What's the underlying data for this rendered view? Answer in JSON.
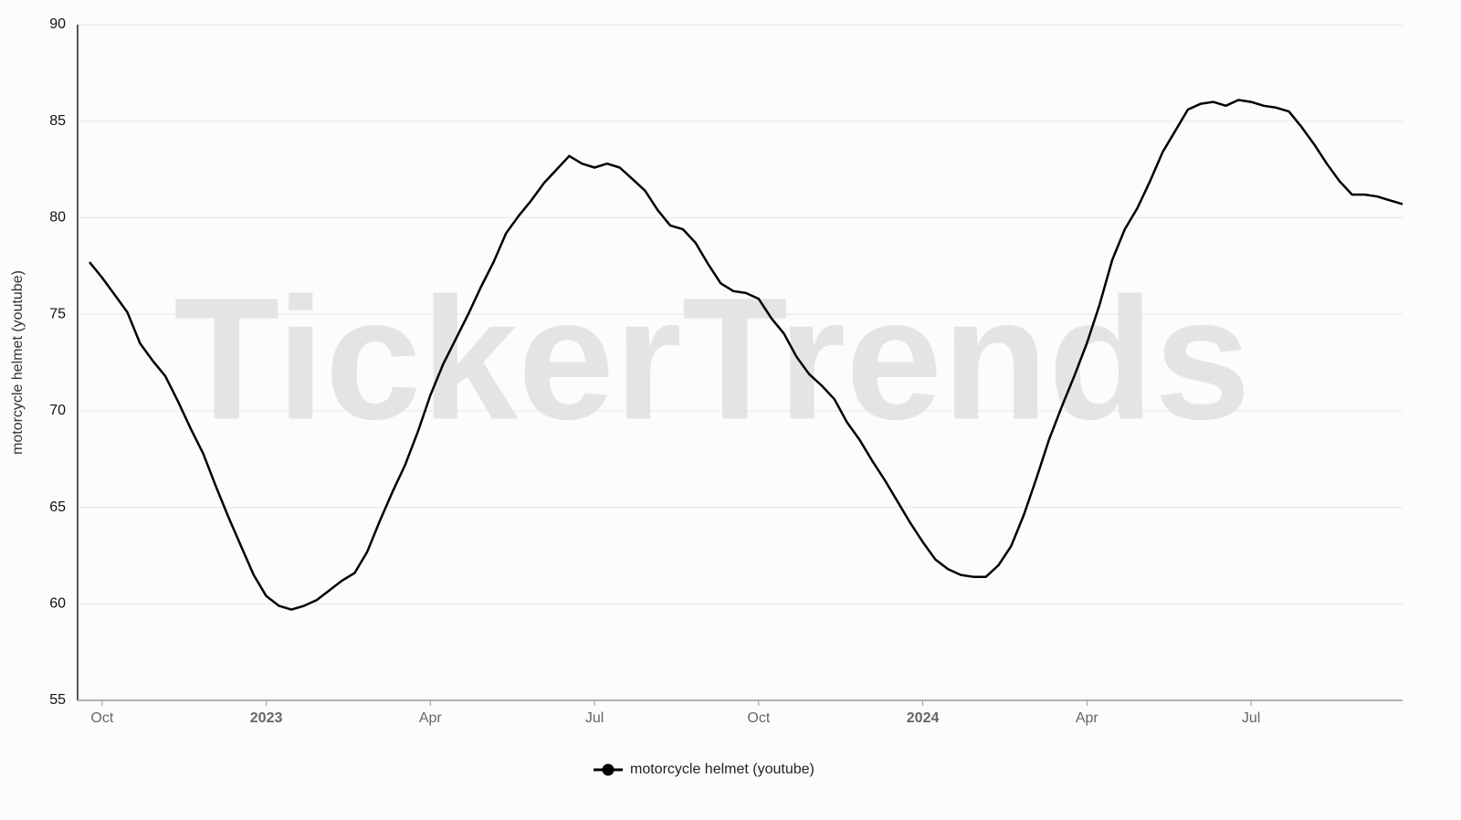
{
  "chart_data": {
    "type": "line",
    "watermark": "TickerTrends",
    "y_label": "motorcycle helmet  (youtube)",
    "categories": [
      null,
      "Oct",
      null,
      null,
      null,
      null,
      null,
      null,
      null,
      null,
      null,
      null,
      null,
      null,
      "2023",
      null,
      null,
      null,
      null,
      null,
      null,
      null,
      null,
      null,
      null,
      null,
      null,
      "Apr",
      null,
      null,
      null,
      null,
      null,
      null,
      null,
      null,
      null,
      null,
      null,
      null,
      "Jul",
      null,
      null,
      null,
      null,
      null,
      null,
      null,
      null,
      null,
      null,
      null,
      null,
      "Oct",
      null,
      null,
      null,
      null,
      null,
      null,
      null,
      null,
      null,
      null,
      null,
      null,
      "2024",
      null,
      null,
      null,
      null,
      null,
      null,
      null,
      null,
      null,
      null,
      null,
      null,
      "Apr",
      null,
      null,
      null,
      null,
      null,
      null,
      null,
      null,
      null,
      null,
      null,
      null,
      "Jul",
      null,
      null,
      null,
      null,
      null,
      null,
      null,
      null,
      null,
      null,
      null,
      null
    ],
    "series": [
      {
        "name": "motorcycle helmet  (youtube)",
        "color": "#000000",
        "values": [
          77.7,
          76.9,
          76.0,
          75.1,
          73.5,
          72.6,
          71.8,
          70.5,
          69.1,
          67.8,
          66.1,
          64.5,
          63.0,
          61.5,
          60.4,
          59.9,
          59.7,
          59.9,
          60.2,
          60.7,
          61.2,
          61.6,
          62.7,
          64.3,
          65.8,
          67.2,
          68.9,
          70.8,
          72.4,
          73.7,
          75.0,
          76.4,
          77.7,
          79.2,
          80.1,
          80.9,
          81.8,
          82.5,
          83.2,
          82.8,
          82.6,
          82.8,
          82.6,
          82.0,
          81.4,
          80.4,
          79.6,
          79.4,
          78.7,
          77.6,
          76.6,
          76.2,
          76.1,
          75.8,
          74.8,
          74.0,
          72.8,
          71.9,
          71.3,
          70.6,
          69.4,
          68.5,
          67.4,
          66.4,
          65.3,
          64.2,
          63.2,
          62.3,
          61.8,
          61.5,
          61.4,
          61.4,
          62.0,
          63.0,
          64.6,
          66.5,
          68.5,
          70.2,
          71.8,
          73.5,
          75.5,
          77.8,
          79.4,
          80.5,
          81.9,
          83.4,
          84.5,
          85.6,
          85.9,
          86.0,
          85.8,
          86.1,
          86.0,
          85.8,
          85.7,
          85.5,
          84.7,
          83.8,
          82.8,
          81.9,
          81.2,
          81.2,
          81.1,
          80.9,
          80.7
        ]
      }
    ],
    "ylim": [
      55,
      90
    ],
    "yticks": [
      55,
      60,
      65,
      70,
      75,
      80,
      85,
      90
    ],
    "grid": true
  }
}
